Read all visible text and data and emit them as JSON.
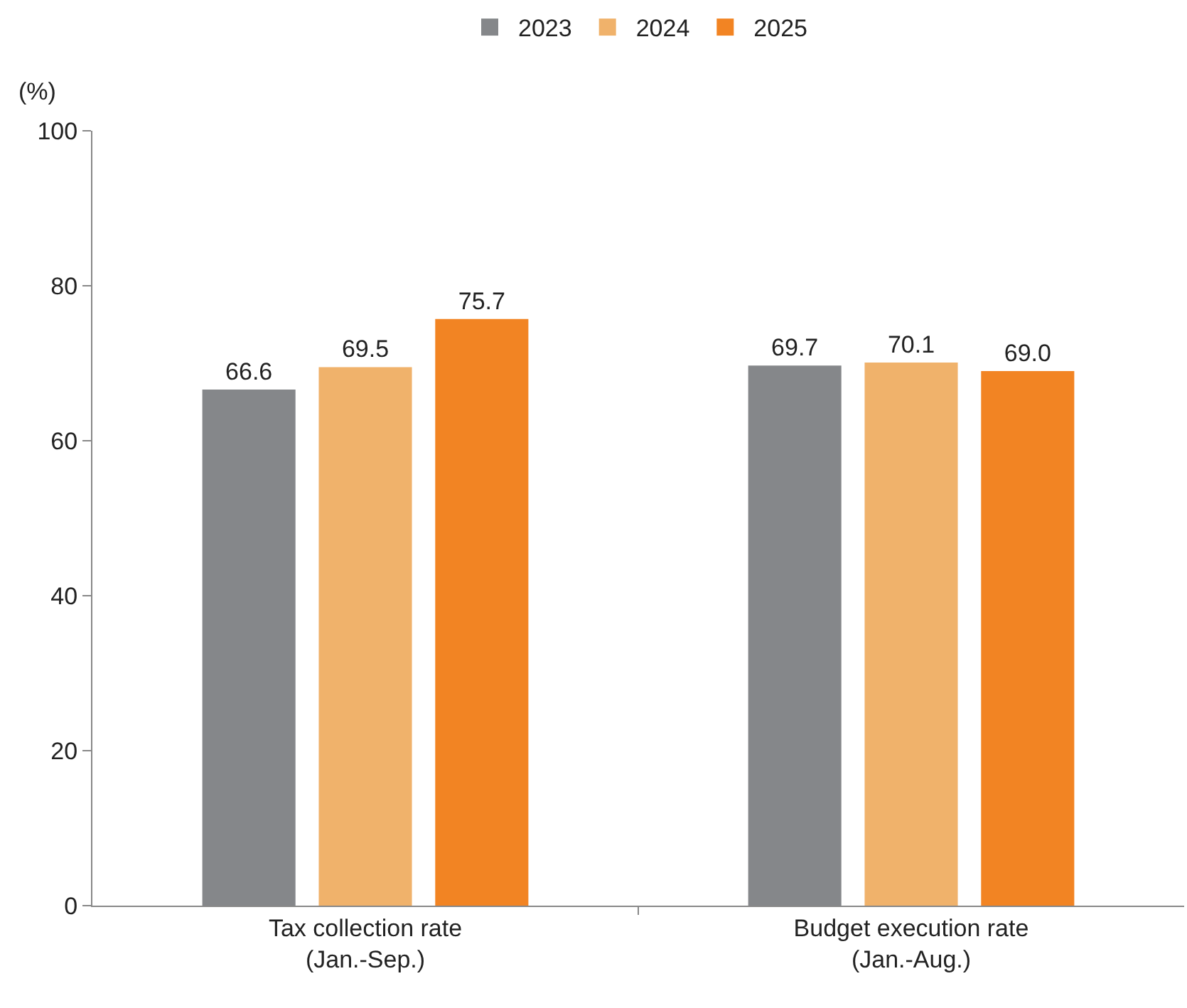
{
  "chart_data": {
    "type": "bar",
    "ylabel": "(%)",
    "categories": [
      "Tax collection rate\n(Jan.-Sep.)",
      "Budget execution rate\n(Jan.-Aug.)"
    ],
    "series": [
      {
        "name": "2023",
        "color": "#85878a",
        "values": [
          66.6,
          69.7
        ]
      },
      {
        "name": "2024",
        "color": "#f0b26b",
        "values": [
          69.5,
          70.1
        ]
      },
      {
        "name": "2025",
        "color": "#f28423",
        "values": [
          75.7,
          69.0
        ]
      }
    ],
    "value_labels": [
      [
        "66.6",
        "69.7"
      ],
      [
        "69.5",
        "70.1"
      ],
      [
        "75.7",
        "69.0"
      ]
    ],
    "ylim": [
      0,
      100
    ],
    "yticks": [
      0,
      20,
      40,
      60,
      80,
      100
    ],
    "grid": false,
    "legend": "top"
  }
}
